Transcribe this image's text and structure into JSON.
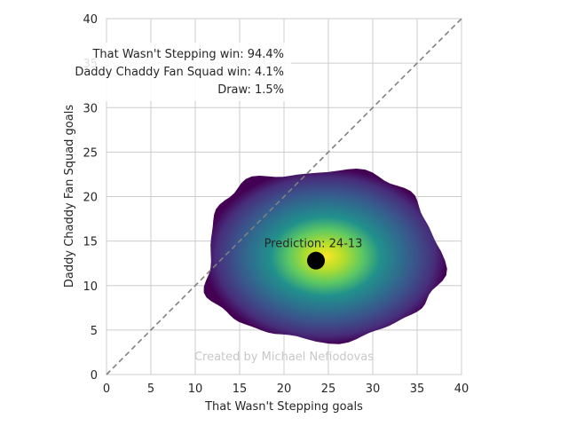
{
  "chart_data": {
    "type": "heatmap",
    "xlabel": "That Wasn't Stepping goals",
    "ylabel": "Daddy Chaddy Fan Squad goals",
    "xlim": [
      0,
      40
    ],
    "ylim": [
      0,
      40
    ],
    "xticks": [
      0,
      5,
      10,
      15,
      20,
      25,
      30,
      35,
      40
    ],
    "yticks": [
      0,
      5,
      10,
      15,
      20,
      25,
      30,
      35,
      40
    ],
    "xtick_labels": [
      "0",
      "5",
      "10",
      "15",
      "20",
      "25",
      "30",
      "35",
      "40"
    ],
    "ytick_labels": [
      "0",
      "5",
      "10",
      "15",
      "20",
      "25",
      "30",
      "35",
      "40"
    ],
    "grid": true,
    "diagonal_line": {
      "from": [
        0,
        0
      ],
      "to": [
        40,
        40
      ],
      "style": "dashed",
      "color": "#808080"
    },
    "distribution": {
      "center": [
        23.6,
        12.8
      ],
      "extent_x": [
        11.2,
        37.5
      ],
      "extent_y": [
        4.0,
        23.0
      ],
      "colormap": "viridis"
    },
    "prediction": {
      "x": 23.6,
      "y": 12.8,
      "label": "Prediction: 24-13",
      "marker_color": "#000000"
    },
    "probabilities": [
      "That Wasn't Stepping win: 94.4%",
      "Daddy Chaddy Fan Squad win: 4.1%",
      "Draw: 1.5%"
    ],
    "watermark": "Created by Michael Nefiodovas"
  }
}
